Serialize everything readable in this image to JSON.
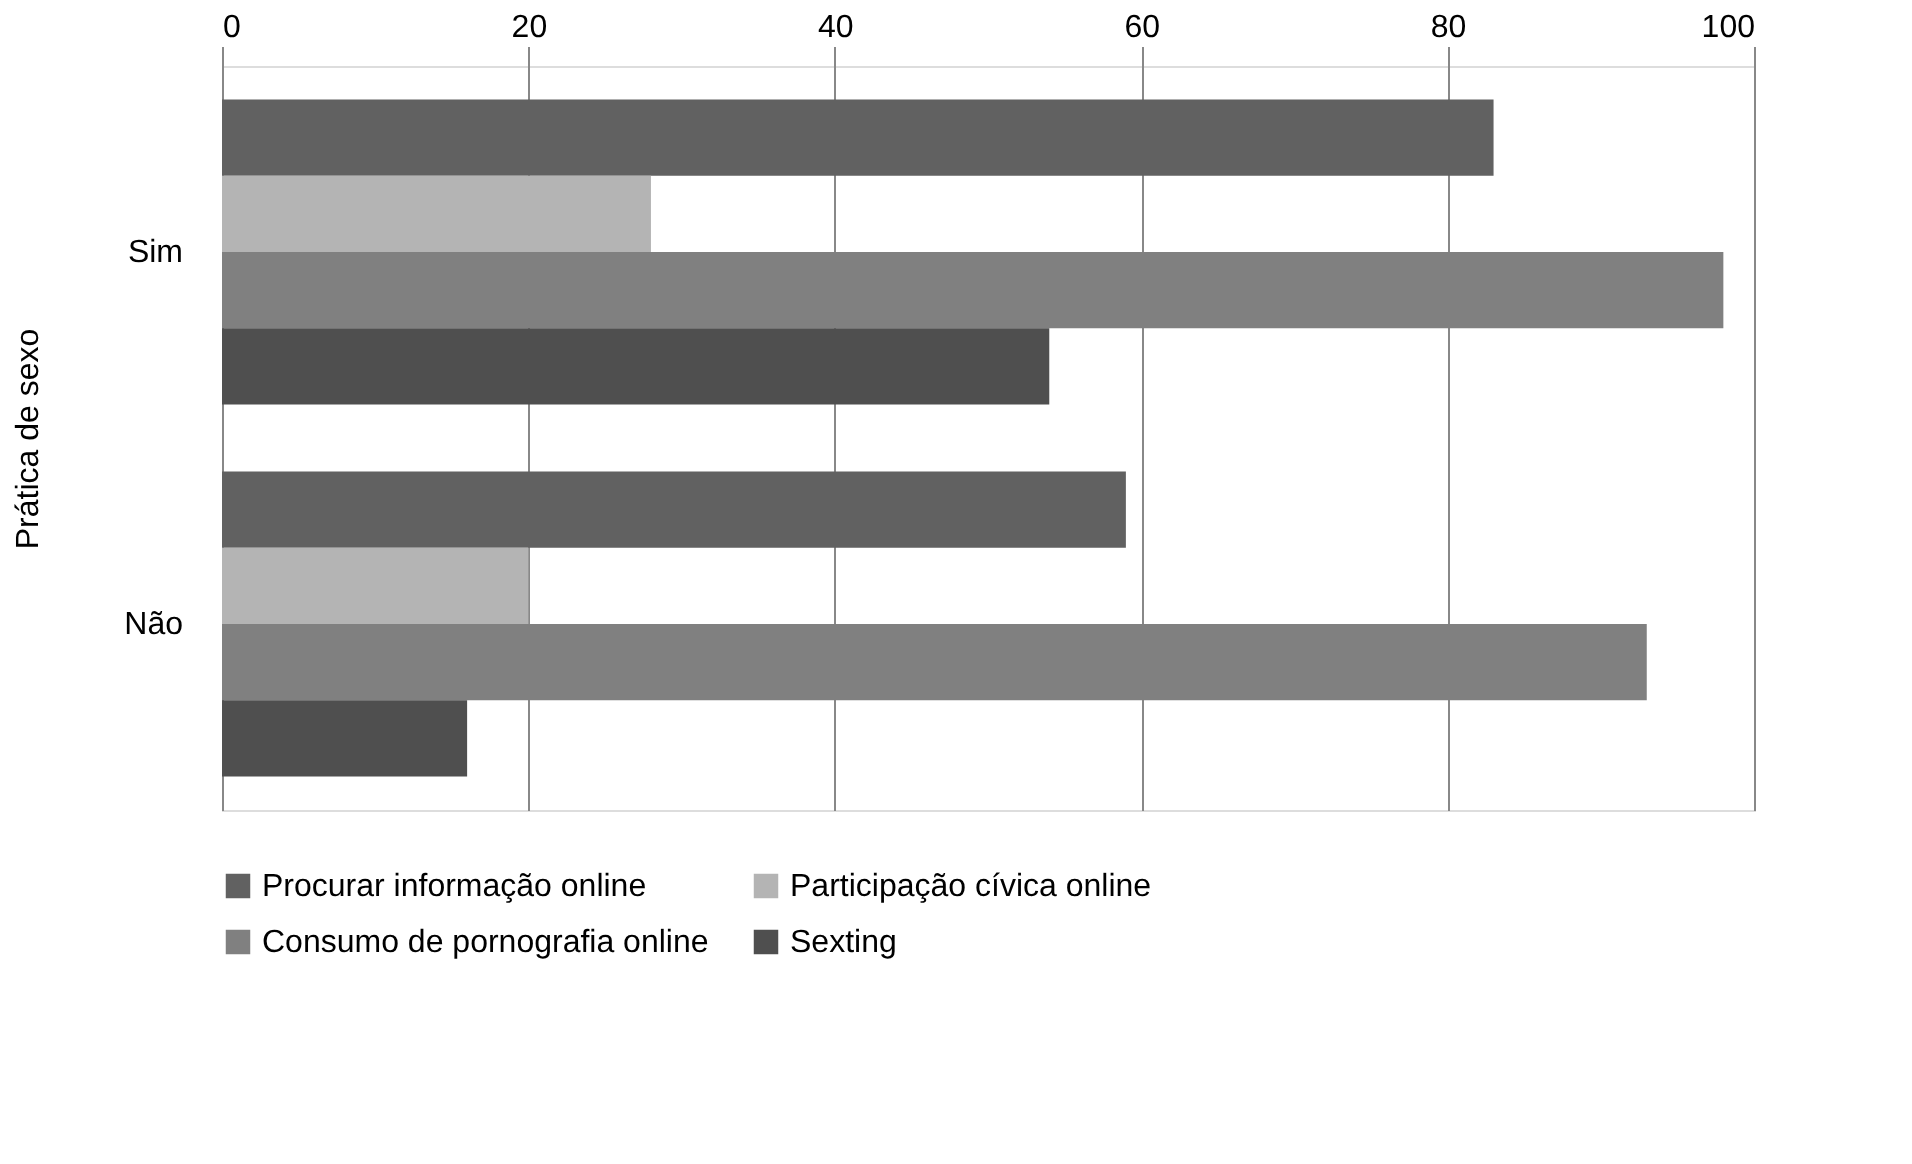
{
  "chart_data": {
    "type": "bar",
    "orientation": "horizontal",
    "ylabel": "Prática de sexo",
    "categories": [
      "Sim",
      "Não"
    ],
    "series": [
      {
        "name": "Procurar informação online",
        "color": "#616161",
        "values": [
          83,
          59
        ]
      },
      {
        "name": "Participação cívica online",
        "color": "#b4b4b4",
        "values": [
          28,
          20
        ]
      },
      {
        "name": "Consumo de pornografia online",
        "color": "#808080",
        "values": [
          98,
          93
        ]
      },
      {
        "name": "Sexting",
        "color": "#4f4f4f",
        "values": [
          54,
          16
        ]
      }
    ],
    "xlim": [
      0,
      100
    ],
    "xticks": [
      0,
      20,
      40,
      60,
      80,
      100
    ],
    "grid": "x",
    "legend": "bottom"
  }
}
